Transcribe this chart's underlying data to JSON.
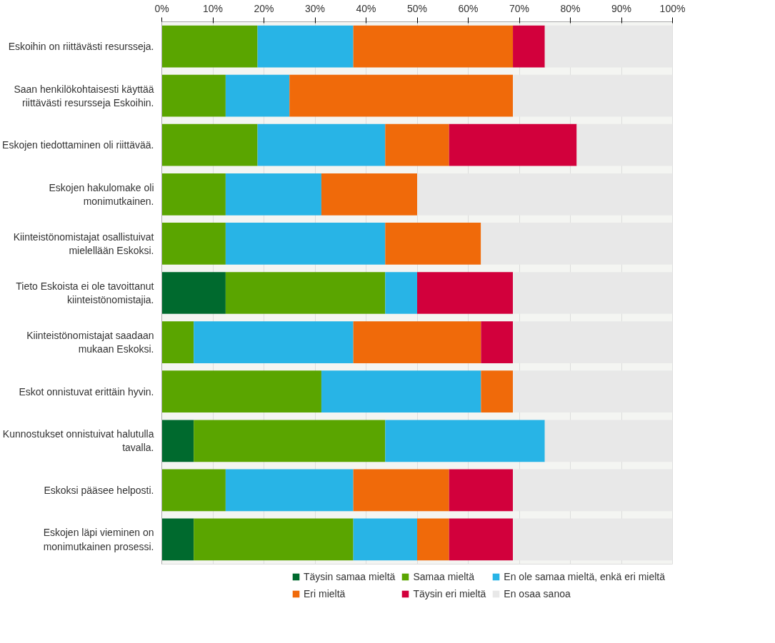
{
  "chart_data": {
    "type": "bar",
    "orientation": "horizontal",
    "stacked": true,
    "categories": [
      "Eskoihin on riittävästi resursseja.",
      "Saan henkilökohtaisesti käyttää\nriittävästi resursseja Eskoihin.",
      "Eskojen tiedottaminen oli riittävää.",
      "Eskojen hakulomake oli\nmonimutkainen.",
      "Kiinteistönomistajat osallistuivat\nmielellään Eskoksi.",
      "Tieto Eskoista ei ole tavoittanut\nkiinteistönomistajia.",
      "Kiinteistönomistajat saadaan\nmukaan Eskoksi.",
      "Eskot onnistuvat erittäin hyvin.",
      "Kunnostukset onnistuivat halutulla\ntavalla.",
      "Eskoksi pääsee helposti.",
      "Eskojen läpi vieminen on\nmonimutkainen prosessi."
    ],
    "series": [
      {
        "name": "Täysin samaa mieltä",
        "color": "#006a2e",
        "values": [
          0,
          0,
          0,
          0,
          0,
          12.5,
          0,
          0,
          6.25,
          0,
          6.25
        ]
      },
      {
        "name": "Samaa mieltä",
        "color": "#5aa500",
        "values": [
          18.75,
          12.5,
          18.75,
          12.5,
          12.5,
          31.25,
          6.25,
          31.25,
          37.5,
          12.5,
          31.25
        ]
      },
      {
        "name": "En ole samaa mieltä, enkä eri mieltä",
        "color": "#28b4e6",
        "values": [
          18.75,
          12.5,
          25,
          18.75,
          31.25,
          6.25,
          31.25,
          31.25,
          31.25,
          25,
          12.5
        ]
      },
      {
        "name": "Eri mieltä",
        "color": "#f06a0a",
        "values": [
          31.25,
          43.75,
          12.5,
          18.75,
          18.75,
          0,
          25,
          6.25,
          0,
          18.75,
          6.25
        ]
      },
      {
        "name": "Täysin eri mieltä",
        "color": "#d2003c",
        "values": [
          6.25,
          0,
          25,
          0,
          0,
          18.75,
          6.25,
          0,
          0,
          12.5,
          12.5
        ]
      },
      {
        "name": "En osaa sanoa",
        "color": "#e8e8e8",
        "values": [
          25,
          31.25,
          18.75,
          50,
          37.5,
          31.25,
          31.25,
          31.25,
          25,
          31.25,
          31.25
        ]
      }
    ],
    "xlim": [
      0,
      100
    ],
    "xticks": [
      {
        "value": 0,
        "label": "0%"
      },
      {
        "value": 10,
        "label": "10%"
      },
      {
        "value": 20,
        "label": "20%"
      },
      {
        "value": 30,
        "label": "30%"
      },
      {
        "value": 40,
        "label": "40%"
      },
      {
        "value": 50,
        "label": "50%"
      },
      {
        "value": 60,
        "label": "60%"
      },
      {
        "value": 70,
        "label": "70%"
      },
      {
        "value": 80,
        "label": "80%"
      },
      {
        "value": 90,
        "label": "90%"
      },
      {
        "value": 100,
        "label": "100%"
      }
    ],
    "grid": "x",
    "legend": "bottom"
  }
}
